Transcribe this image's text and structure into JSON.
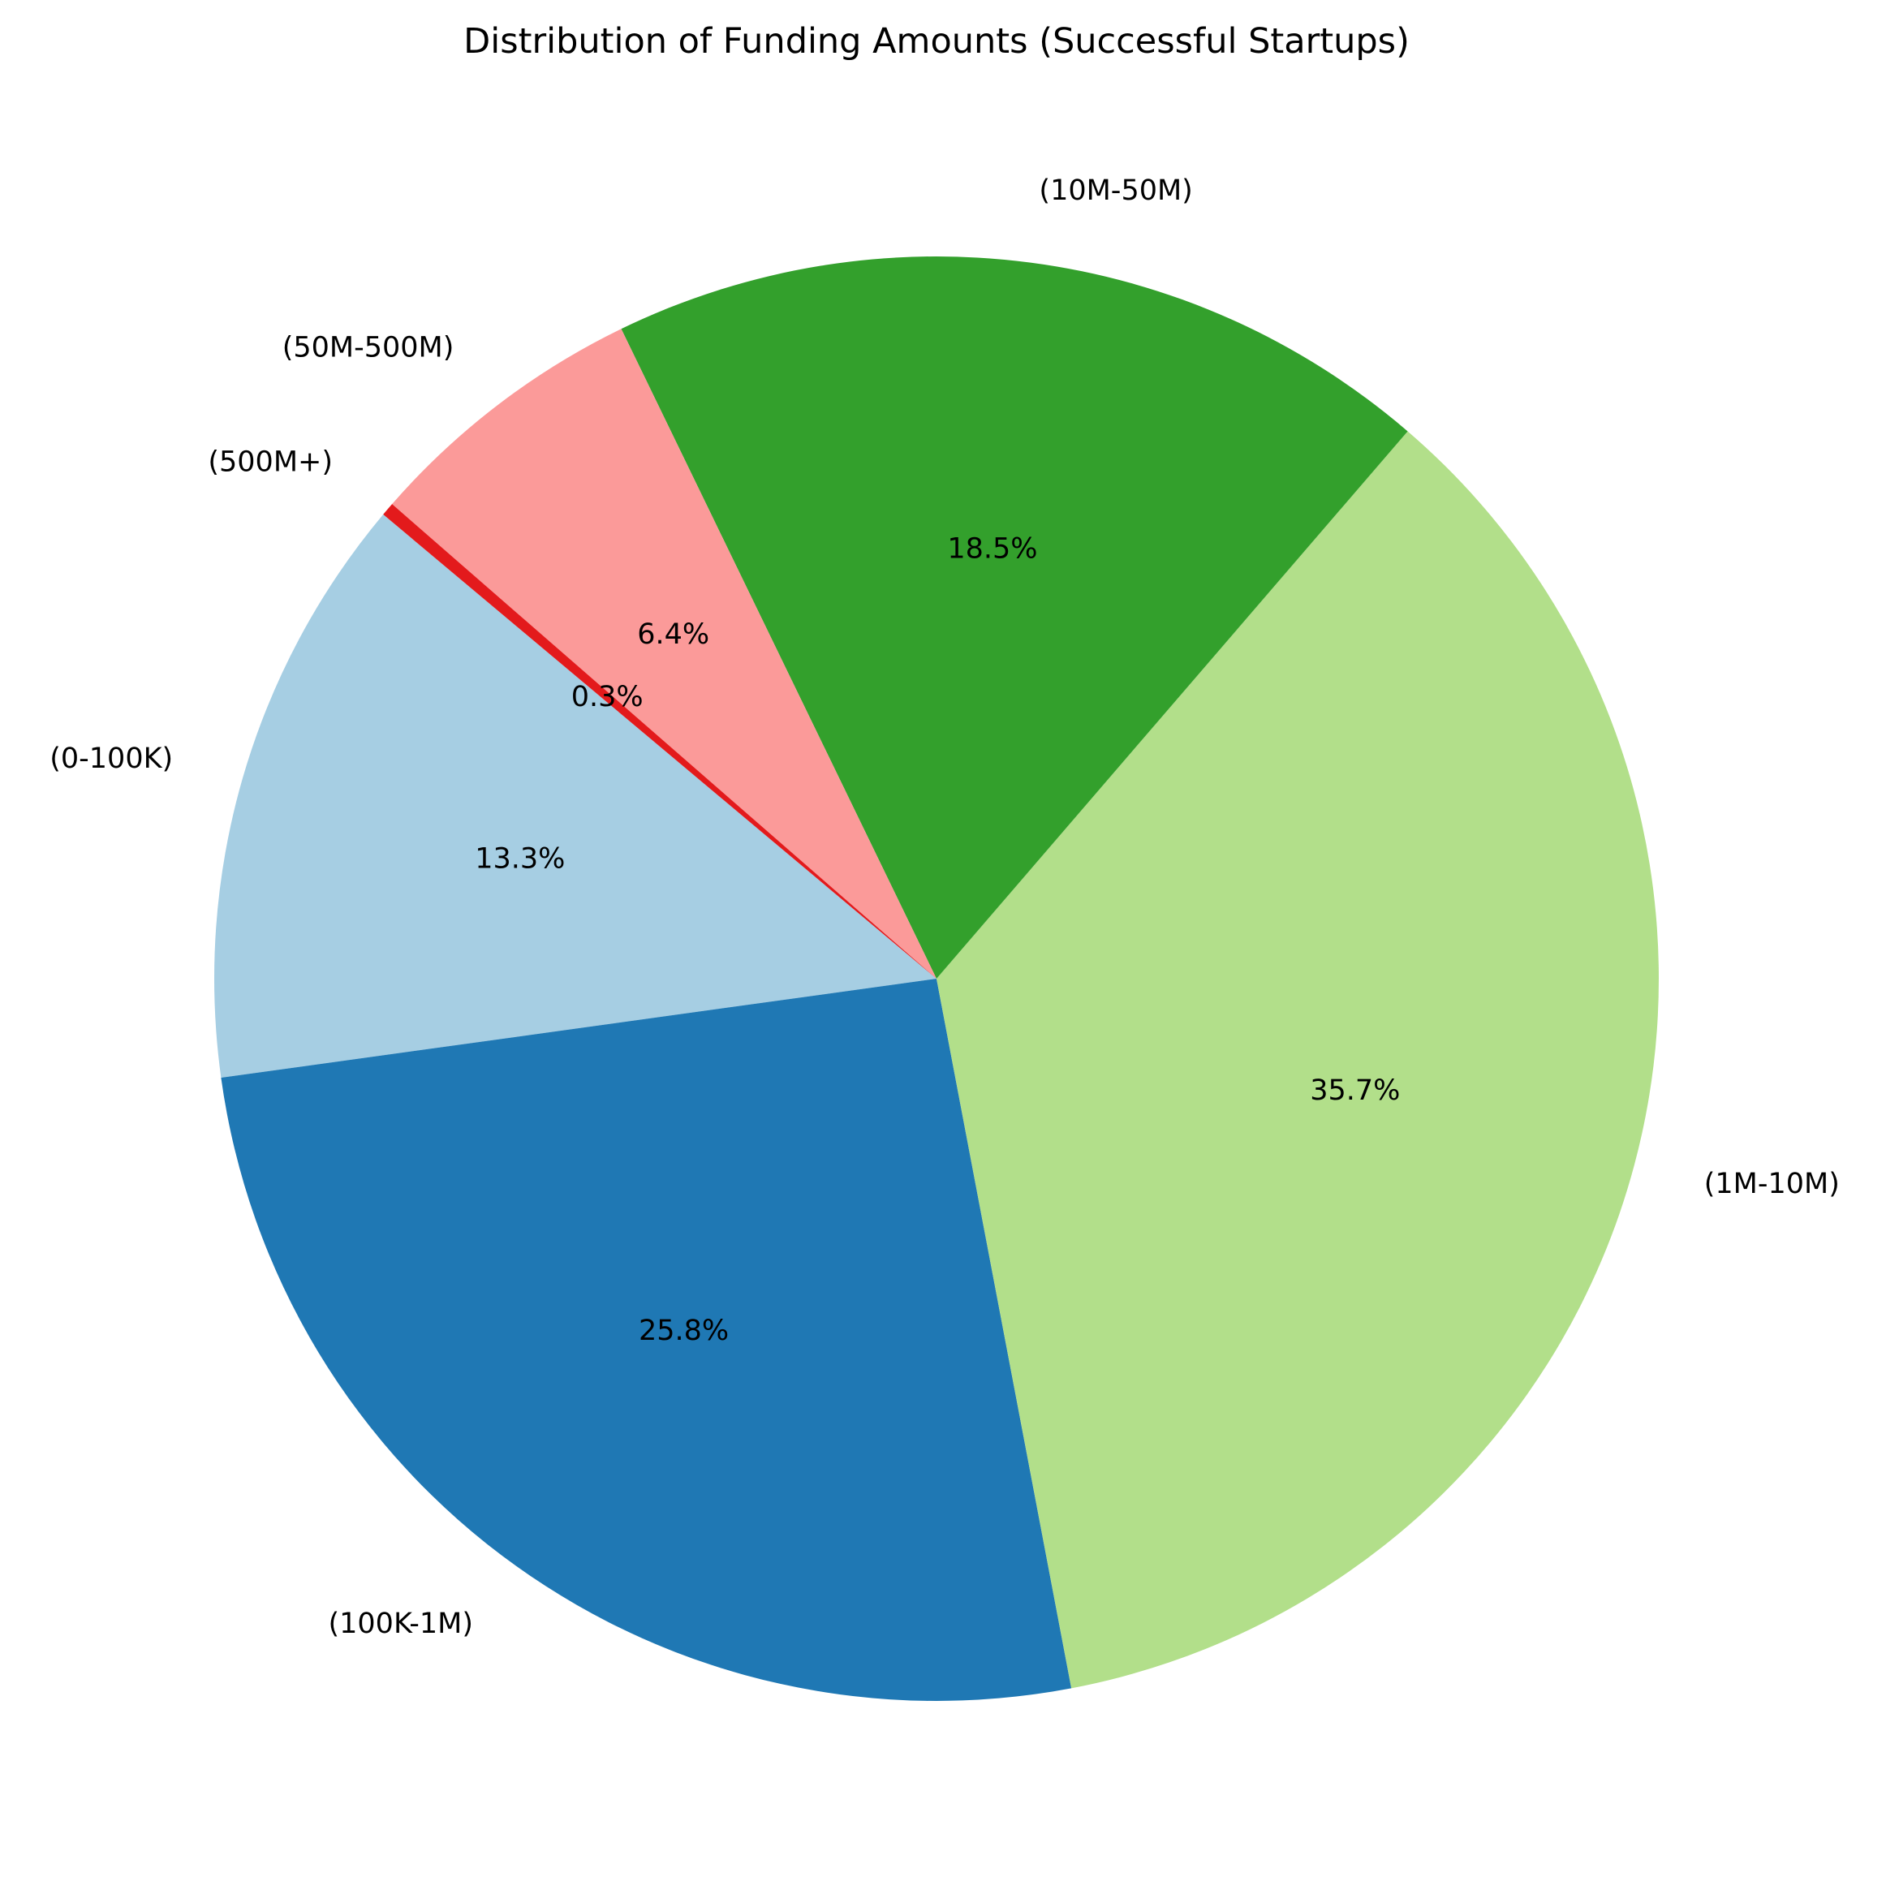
{
  "chart_data": {
    "type": "pie",
    "title": "Distribution of Funding Amounts (Successful Startups)",
    "start_angle_deg": 140,
    "direction": "counterclockwise",
    "slices": [
      {
        "label": "(0-100K)",
        "value": 13.3,
        "pct_text": "13.3%",
        "color": "#a6cee3"
      },
      {
        "label": "(100K-1M)",
        "value": 25.8,
        "pct_text": "25.8%",
        "color": "#1f78b4"
      },
      {
        "label": "(1M-10M)",
        "value": 35.7,
        "pct_text": "35.7%",
        "color": "#b2df8a"
      },
      {
        "label": "(10M-50M)",
        "value": 18.5,
        "pct_text": "18.5%",
        "color": "#33a02c"
      },
      {
        "label": "(50M-500M)",
        "value": 6.4,
        "pct_text": "6.4%",
        "color": "#fb9a99"
      },
      {
        "label": "(500M+)",
        "value": 0.3,
        "pct_text": "0.3%",
        "color": "#e31a1c"
      }
    ]
  }
}
